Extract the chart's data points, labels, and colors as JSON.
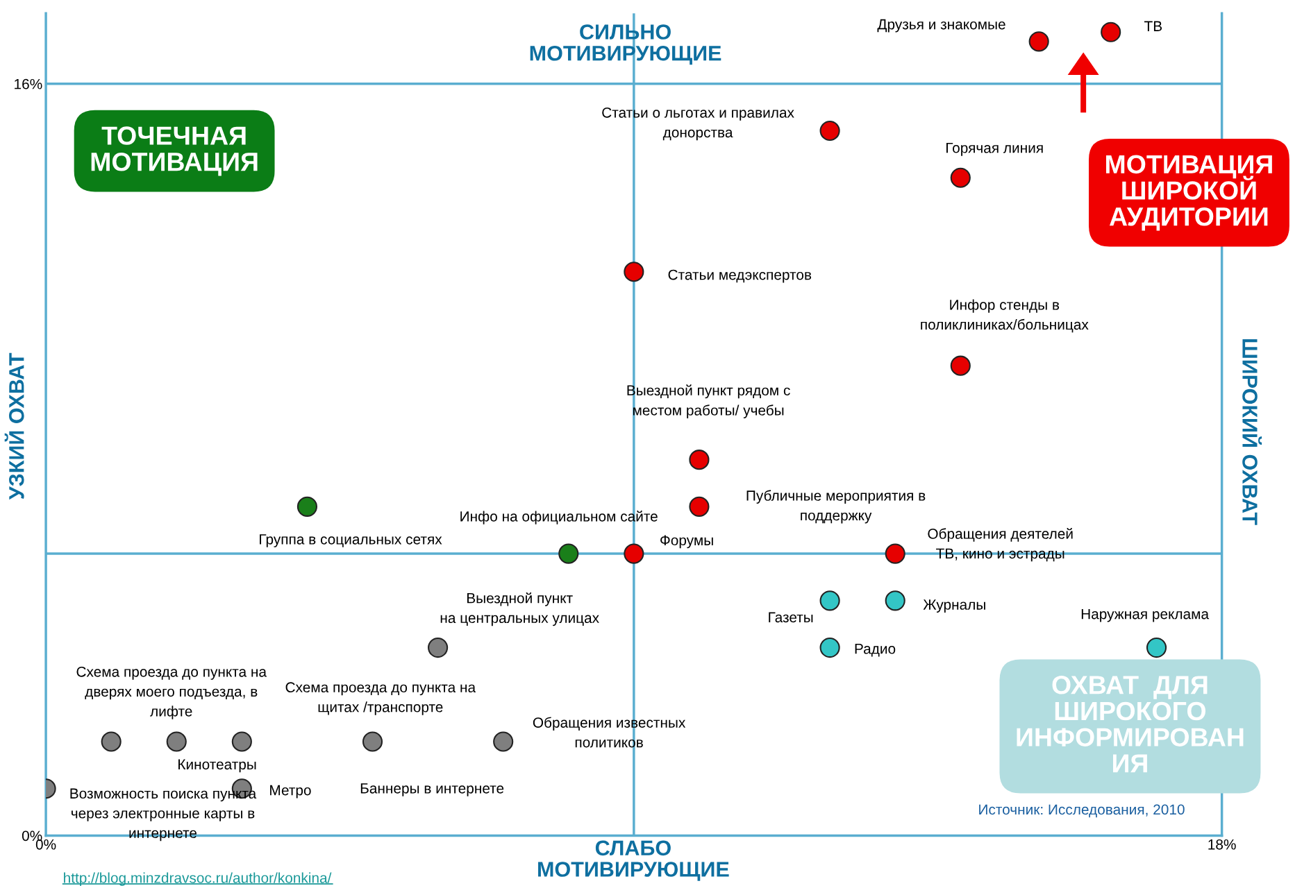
{
  "chart_data": {
    "type": "scatter",
    "xlim": [
      0,
      18
    ],
    "ylim": [
      0,
      17.5
    ],
    "xticks": [
      {
        "value": 0,
        "label": "0%"
      },
      {
        "value": 18,
        "label": "18%"
      }
    ],
    "yticks": [
      {
        "value": 0,
        "label": "0%"
      },
      {
        "value": 16,
        "label": "16%"
      }
    ],
    "marker": "circle",
    "grid": false,
    "series": [
      {
        "color": "#e60000",
        "x": [
          15.2,
          16.3,
          12,
          14,
          9,
          14,
          10,
          10,
          9,
          13
        ],
        "values": [
          16.9,
          17.1,
          15,
          14,
          12,
          10,
          8,
          7,
          6,
          6
        ]
      },
      {
        "color": "#1a7f1a",
        "x": [
          4,
          8
        ],
        "values": [
          7,
          6
        ]
      },
      {
        "color": "#33c6c6",
        "x": [
          12,
          13,
          12,
          17
        ],
        "values": [
          5,
          5,
          4,
          4
        ]
      },
      {
        "color": "#7f7f7f",
        "x": [
          6,
          1,
          2,
          3,
          5,
          7,
          3,
          0
        ],
        "values": [
          4,
          2,
          2,
          2,
          2,
          2,
          1,
          1
        ]
      }
    ],
    "ref_lines": [
      {
        "axis": "x",
        "value": 9,
        "color": "#5aaed0"
      },
      {
        "axis": "y",
        "value": 6,
        "color": "#5aaed0"
      },
      {
        "axis": "y",
        "value": 16,
        "color": "#5aaed0"
      }
    ],
    "annotations": [
      "Друзья и знакомые",
      "ТВ",
      "Статьи о льготах и правилах\nдонорства",
      "Горячая линия",
      "Статьи медэкспертов",
      "Инфор стенды в\nполиклиниках/больницах",
      "Выездной пункт рядом с\nместом работы/ учебы",
      "Публичные мероприятия в\nподдержку",
      "Форумы",
      "Обращения деятелей\nТВ, кино и эстрады",
      "Группа в социальных сетях",
      "Инфо на официальном сайте",
      "Газеты",
      "Журналы",
      "Радио",
      "Наружная реклама",
      "Выездной пункт\nна центральных улицах",
      "Схема проезда до пункта на\nдверях моего подъезда, в\nлифте",
      "Кинотеатры",
      "Схема проезда до пункта на\nщитах /транспорте",
      "Баннеры в интернете",
      "Обращения известных\nполитиков",
      "Метро",
      "Возможность поиска пункта\nчерез электронные карты в\nинтернете",
      "СИЛЬНО\nМОТИВИРУЮЩИЕ",
      "СЛАБО\nМОТИВИРУЮЩИЕ",
      "УЗКИЙ ОХВАТ",
      "ШИРОКИЙ ОХВАТ",
      "ТОЧЕЧНАЯ\nМОТИВАЦИЯ",
      "МОТИВАЦИЯ\nШИРОКОЙ\nАУДИТОРИИ",
      "ОХВАТ  ДЛЯ\nШИРОКОГО\nИНФОРМИРОВАН\nИЯ",
      "Источник: Исследования, 2010",
      "http://blog.minzdravsoc.ru/author/konkina/"
    ]
  }
}
